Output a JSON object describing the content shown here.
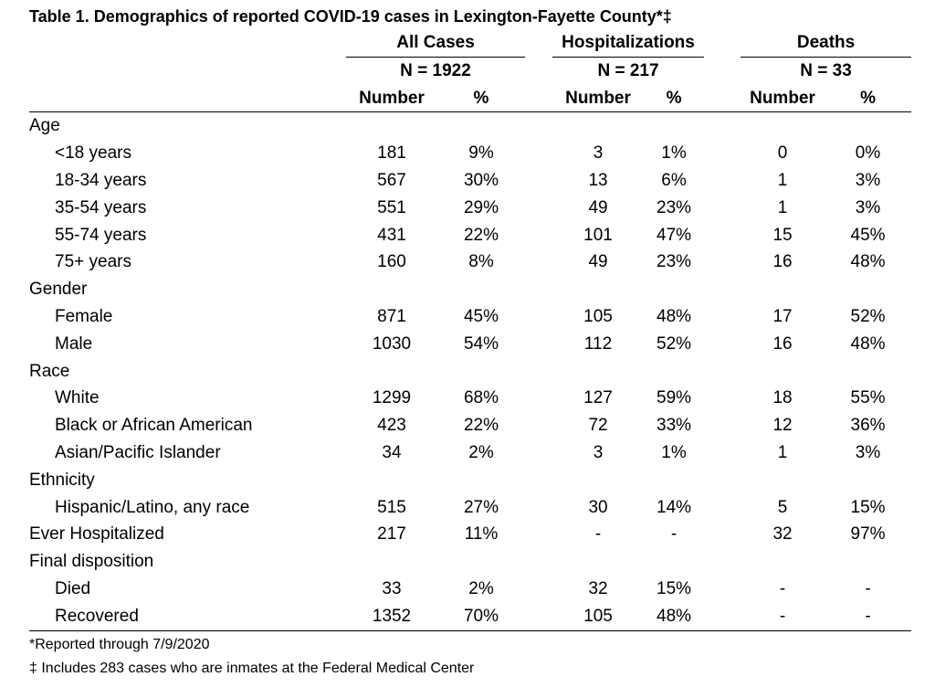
{
  "title": "Table 1. Demographics of reported COVID-19 cases in Lexington-Fayette County*‡",
  "groups": [
    {
      "name": "All Cases",
      "n": "N = 1922"
    },
    {
      "name": "Hospitalizations",
      "n": "N = 217"
    },
    {
      "name": "Deaths",
      "n": "N = 33"
    }
  ],
  "col_headers": [
    "Number",
    "%",
    "Number",
    "%",
    "Number",
    "%"
  ],
  "rows": [
    {
      "label": "Age",
      "values": [
        "",
        "",
        "",
        "",
        "",
        ""
      ]
    },
    {
      "label": "<18 years",
      "values": [
        "181",
        "9%",
        "3",
        "1%",
        "0",
        "0%"
      ]
    },
    {
      "label": "18-34 years",
      "values": [
        "567",
        "30%",
        "13",
        "6%",
        "1",
        "3%"
      ]
    },
    {
      "label": "35-54 years",
      "values": [
        "551",
        "29%",
        "49",
        "23%",
        "1",
        "3%"
      ]
    },
    {
      "label": "55-74 years",
      "values": [
        "431",
        "22%",
        "101",
        "47%",
        "15",
        "45%"
      ]
    },
    {
      "label": "75+ years",
      "values": [
        "160",
        "8%",
        "49",
        "23%",
        "16",
        "48%"
      ]
    },
    {
      "label": "Gender",
      "values": [
        "",
        "",
        "",
        "",
        "",
        ""
      ]
    },
    {
      "label": "Female",
      "values": [
        "871",
        "45%",
        "105",
        "48%",
        "17",
        "52%"
      ]
    },
    {
      "label": "Male",
      "values": [
        "1030",
        "54%",
        "112",
        "52%",
        "16",
        "48%"
      ]
    },
    {
      "label": "Race",
      "values": [
        "",
        "",
        "",
        "",
        "",
        ""
      ]
    },
    {
      "label": "White",
      "values": [
        "1299",
        "68%",
        "127",
        "59%",
        "18",
        "55%"
      ]
    },
    {
      "label": "Black or African American",
      "values": [
        "423",
        "22%",
        "72",
        "33%",
        "12",
        "36%"
      ]
    },
    {
      "label": "Asian/Pacific Islander",
      "values": [
        "34",
        "2%",
        "3",
        "1%",
        "1",
        "3%"
      ]
    },
    {
      "label": "Ethnicity",
      "values": [
        "",
        "",
        "",
        "",
        "",
        ""
      ]
    },
    {
      "label": "Hispanic/Latino, any race",
      "values": [
        "515",
        "27%",
        "30",
        "14%",
        "5",
        "15%"
      ]
    },
    {
      "label": "Ever Hospitalized",
      "values": [
        "217",
        "11%",
        "-",
        "-",
        "32",
        "97%"
      ]
    },
    {
      "label": "Final disposition",
      "values": [
        "",
        "",
        "",
        "",
        "",
        ""
      ]
    },
    {
      "label": "Died",
      "values": [
        "33",
        "2%",
        "32",
        "15%",
        "-",
        "-"
      ]
    },
    {
      "label": "Recovered",
      "values": [
        "1352",
        "70%",
        "105",
        "48%",
        "-",
        "-"
      ]
    }
  ],
  "footnotes": [
    "*Reported through 7/9/2020",
    "‡ Includes 283 cases who are inmates at the Federal Medical Center"
  ]
}
